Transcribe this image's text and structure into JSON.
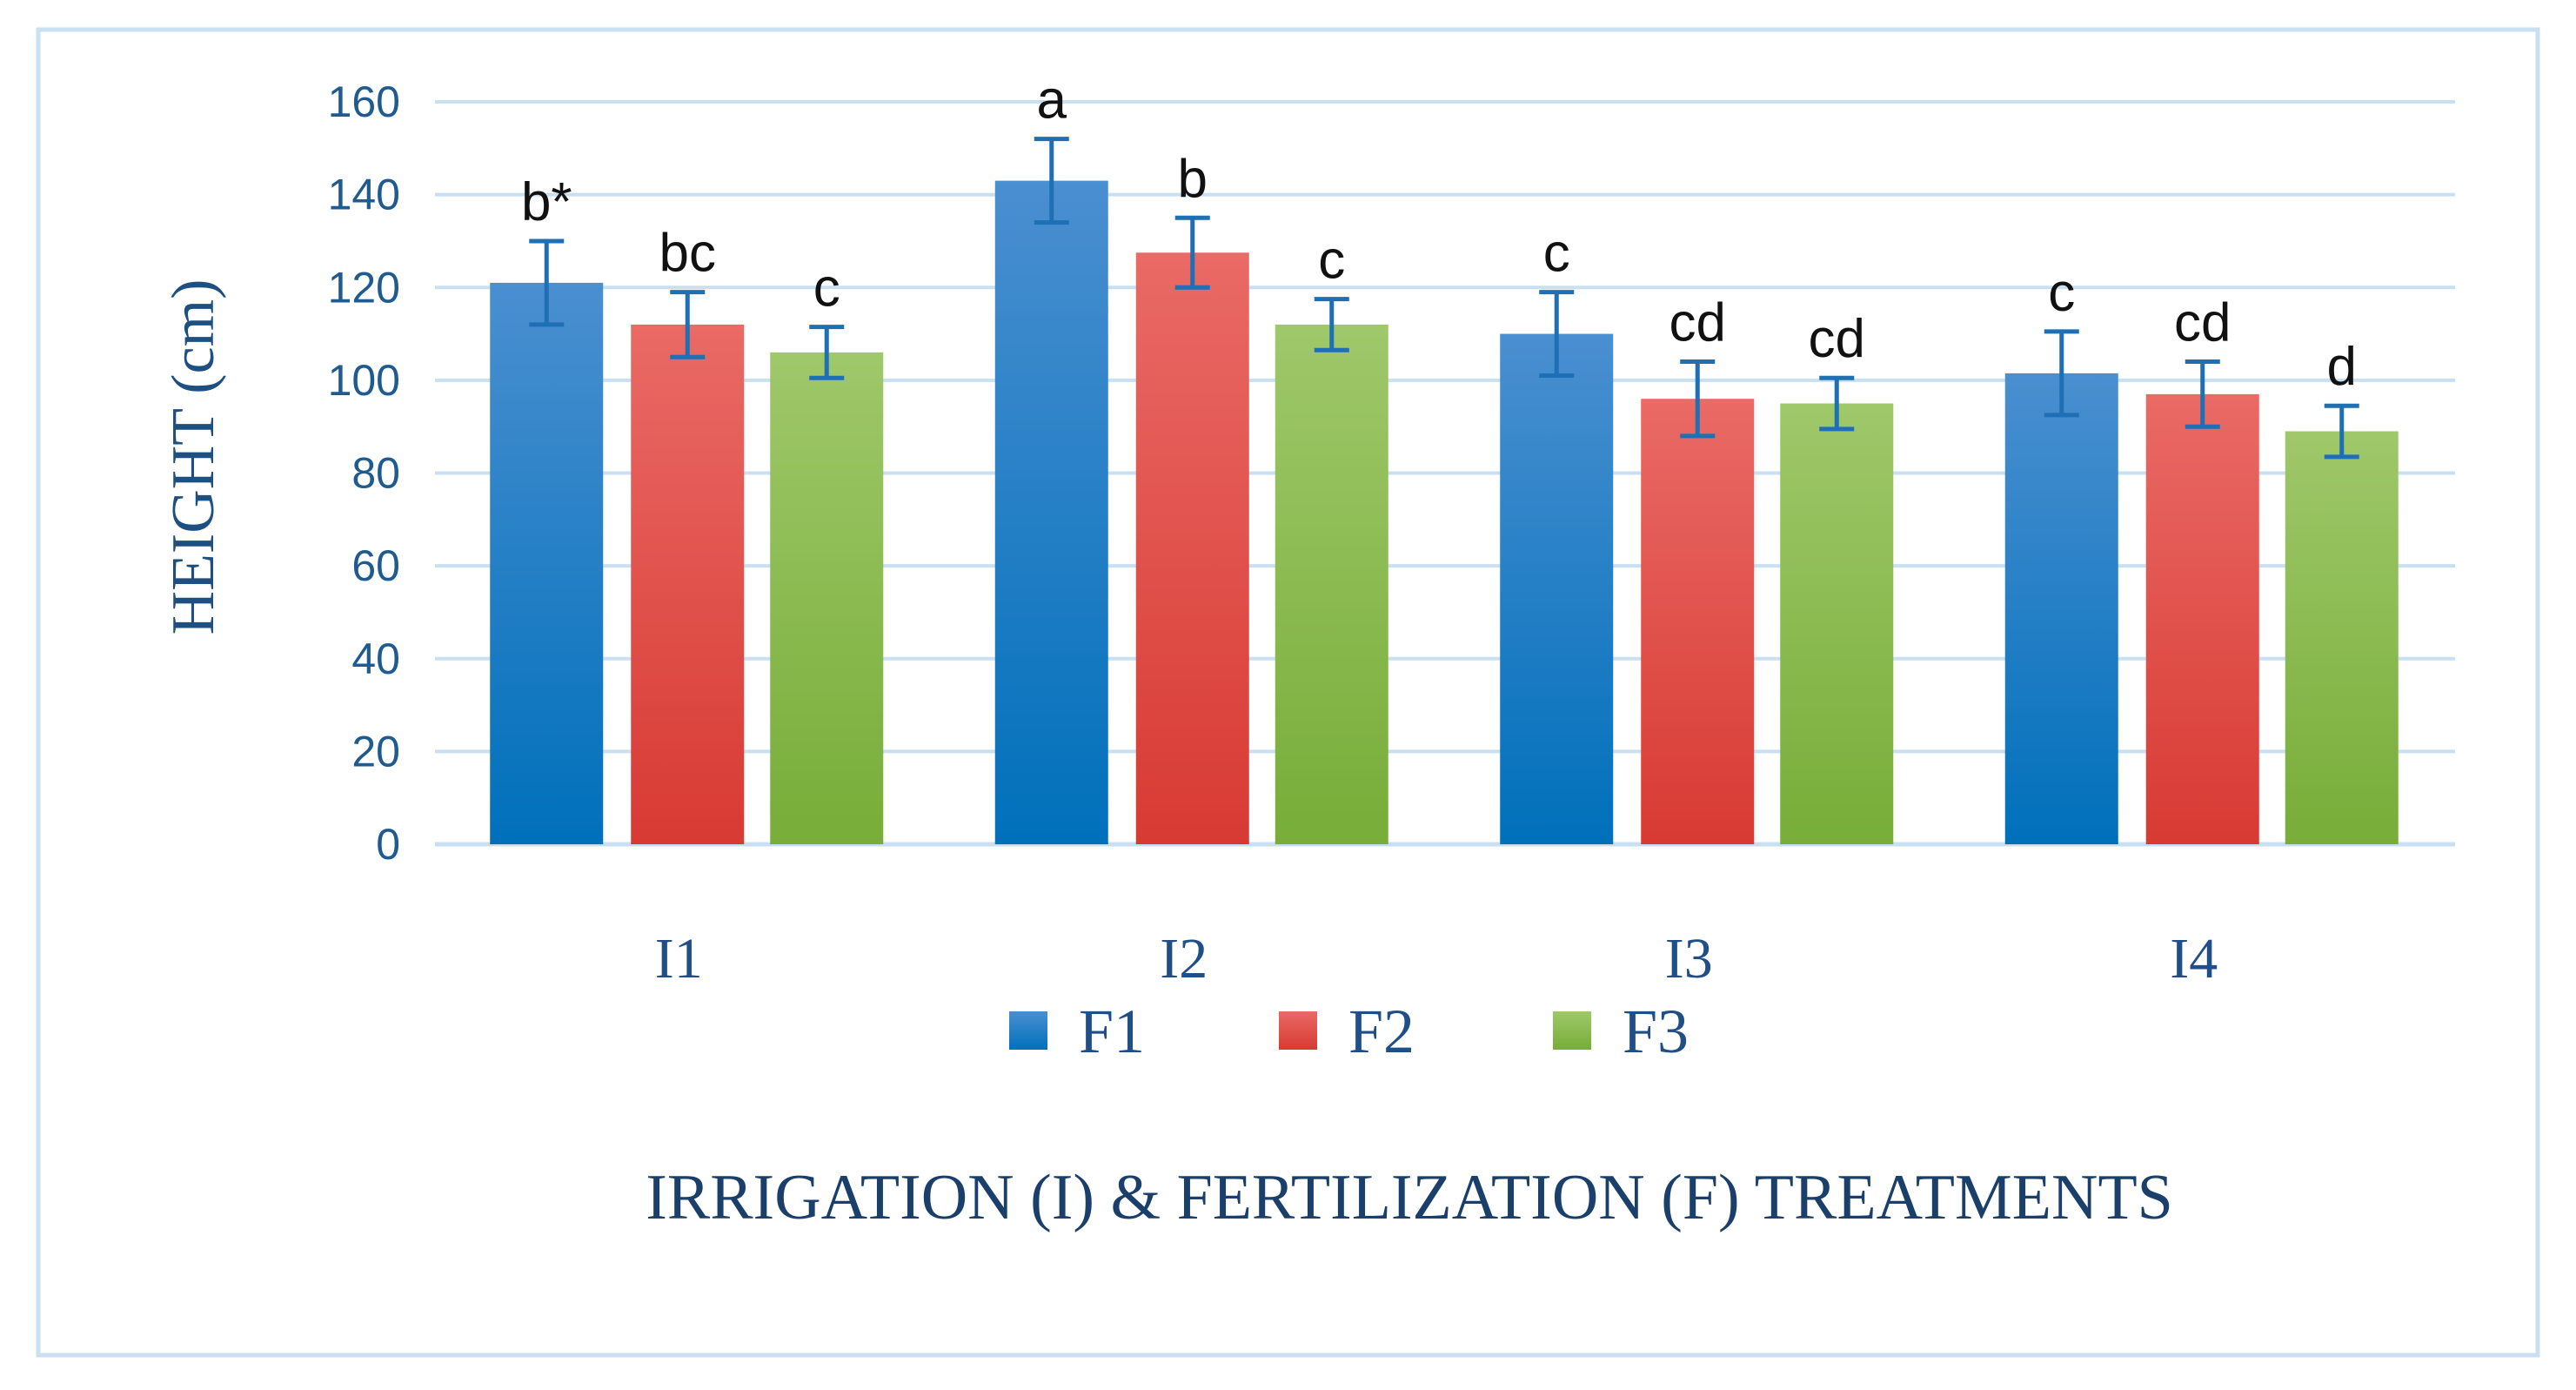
{
  "chart_data": {
    "type": "bar",
    "title": "",
    "xlabel": "IRRIGATION (I) & FERTILIZATION (F) TREATMENTS",
    "ylabel": "HEIGHT (cm)",
    "ylim": [
      0,
      160
    ],
    "yticks": [
      0,
      20,
      40,
      60,
      80,
      100,
      120,
      140,
      160
    ],
    "grid": true,
    "legend_position": "bottom",
    "categories": [
      "I1",
      "I2",
      "I3",
      "I4"
    ],
    "series": [
      {
        "name": "F1",
        "values": [
          121,
          143,
          110,
          101.5
        ],
        "errors": [
          9,
          9,
          9,
          9
        ],
        "labels": [
          "b*",
          "a",
          "c",
          "c"
        ],
        "color_top": "#4a8fd0",
        "color_bottom": "#0070bb"
      },
      {
        "name": "F2",
        "values": [
          112,
          127.5,
          96,
          97
        ],
        "errors": [
          7,
          7.5,
          8,
          7
        ],
        "labels": [
          "bc",
          "b",
          "cd",
          "cd"
        ],
        "color_top": "#ea6a66",
        "color_bottom": "#d83a33"
      },
      {
        "name": "F3",
        "values": [
          106,
          112,
          95,
          89
        ],
        "errors": [
          5.5,
          5.5,
          5.5,
          5.5
        ],
        "labels": [
          "c",
          "c",
          "cd",
          "d"
        ],
        "color_top": "#9fc86a",
        "color_bottom": "#77ad38"
      }
    ],
    "colors": {
      "grid": "#c9dff2",
      "axis": "#c9dff2",
      "error_bar": "#1f6fb5",
      "frame": "#c9dff2"
    }
  }
}
